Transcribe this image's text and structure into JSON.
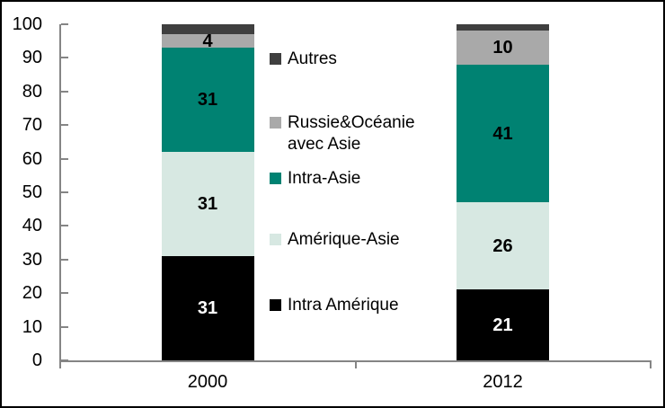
{
  "figure": {
    "background_color": "#FFFFFF",
    "border_color": "#000000",
    "axis_color": "#858585",
    "text_color": "#000000"
  },
  "chart_data": {
    "type": "bar",
    "stacked": true,
    "title": "",
    "xlabel": "",
    "ylabel": "",
    "categories": [
      "2000",
      "2012"
    ],
    "series": [
      {
        "name": "Intra Amérique",
        "values": [
          31,
          21
        ],
        "color": "#000000",
        "label_color": "#FFFFFF",
        "show_labels": true
      },
      {
        "name": "Amérique-Asie",
        "values": [
          31,
          26
        ],
        "color": "#D7E8E2",
        "label_color": "#000000",
        "show_labels": true
      },
      {
        "name": "Intra-Asie",
        "values": [
          31,
          41
        ],
        "color": "#008272",
        "label_color": "#000000",
        "show_labels": true
      },
      {
        "name": "Russie&Océanie avec Asie",
        "values": [
          4,
          10
        ],
        "color": "#A9A9A9",
        "label_color": "#000000",
        "show_labels": true
      },
      {
        "name": "Autres",
        "values": [
          3,
          2
        ],
        "color": "#3F3F3F",
        "label_color": "#000000",
        "show_labels": false
      }
    ],
    "ylim": [
      0,
      100
    ],
    "ytick_step": 10,
    "ytick_labels": [
      "0",
      "10",
      "20",
      "30",
      "40",
      "50",
      "60",
      "70",
      "80",
      "90",
      "100"
    ],
    "grid": false,
    "legend": {
      "position": "overlay-center",
      "entries": [
        {
          "lines": [
            "Autres"
          ],
          "color": "#3F3F3F"
        },
        {
          "lines": [
            "Russie&Océanie",
            "avec Asie"
          ],
          "color": "#A9A9A9"
        },
        {
          "lines": [
            "Intra-Asie"
          ],
          "color": "#008272"
        },
        {
          "lines": [
            "Amérique-Asie"
          ],
          "color": "#D7E8E2"
        },
        {
          "lines": [
            "Intra Amérique"
          ],
          "color": "#000000"
        }
      ]
    }
  }
}
